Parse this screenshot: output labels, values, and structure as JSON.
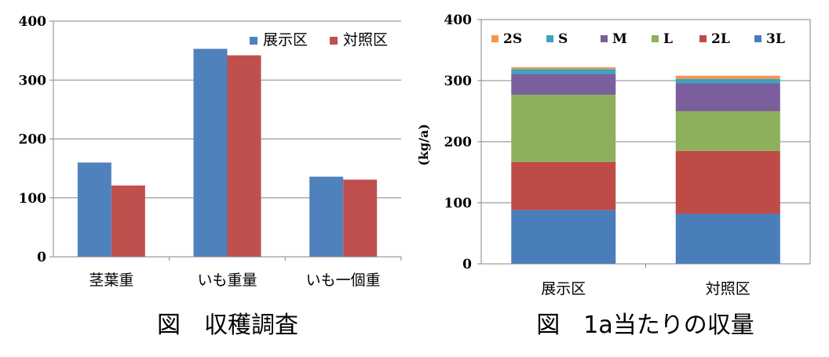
{
  "chart_data": [
    {
      "type": "bar",
      "caption": "図　収穫調査",
      "categories": [
        "茎葉重",
        "いも重量",
        "いも一個重"
      ],
      "series": [
        {
          "name": "展示区",
          "color": "#4f81bd",
          "values": [
            160,
            353,
            136
          ]
        },
        {
          "name": "対照区",
          "color": "#c0504d",
          "values": [
            121,
            342,
            131
          ]
        }
      ],
      "ylim": [
        0,
        400
      ],
      "yticks": [
        "0",
        "100",
        "200",
        "300",
        "400"
      ],
      "grid": true,
      "legend": "top-right"
    },
    {
      "type": "bar",
      "stacked": true,
      "caption": "図　1a当たりの収量",
      "ylabel": "(kg/a)",
      "categories": [
        "展示区",
        "対照区"
      ],
      "series": [
        {
          "name": "3L",
          "color": "#4a7ebb",
          "values": [
            88,
            82
          ]
        },
        {
          "name": "2L",
          "color": "#be4b48",
          "values": [
            79,
            103
          ]
        },
        {
          "name": "L",
          "color": "#8cb15a",
          "values": [
            110,
            65
          ]
        },
        {
          "name": "M",
          "color": "#7a5f9c",
          "values": [
            34,
            46
          ]
        },
        {
          "name": "S",
          "color": "#3ba4c0",
          "values": [
            8,
            7
          ]
        },
        {
          "name": "2S",
          "color": "#f79646",
          "values": [
            3,
            5
          ]
        }
      ],
      "ylim": [
        0,
        400
      ],
      "yticks": [
        "0",
        "100",
        "200",
        "300",
        "400"
      ],
      "grid": true,
      "legend": "top"
    }
  ]
}
